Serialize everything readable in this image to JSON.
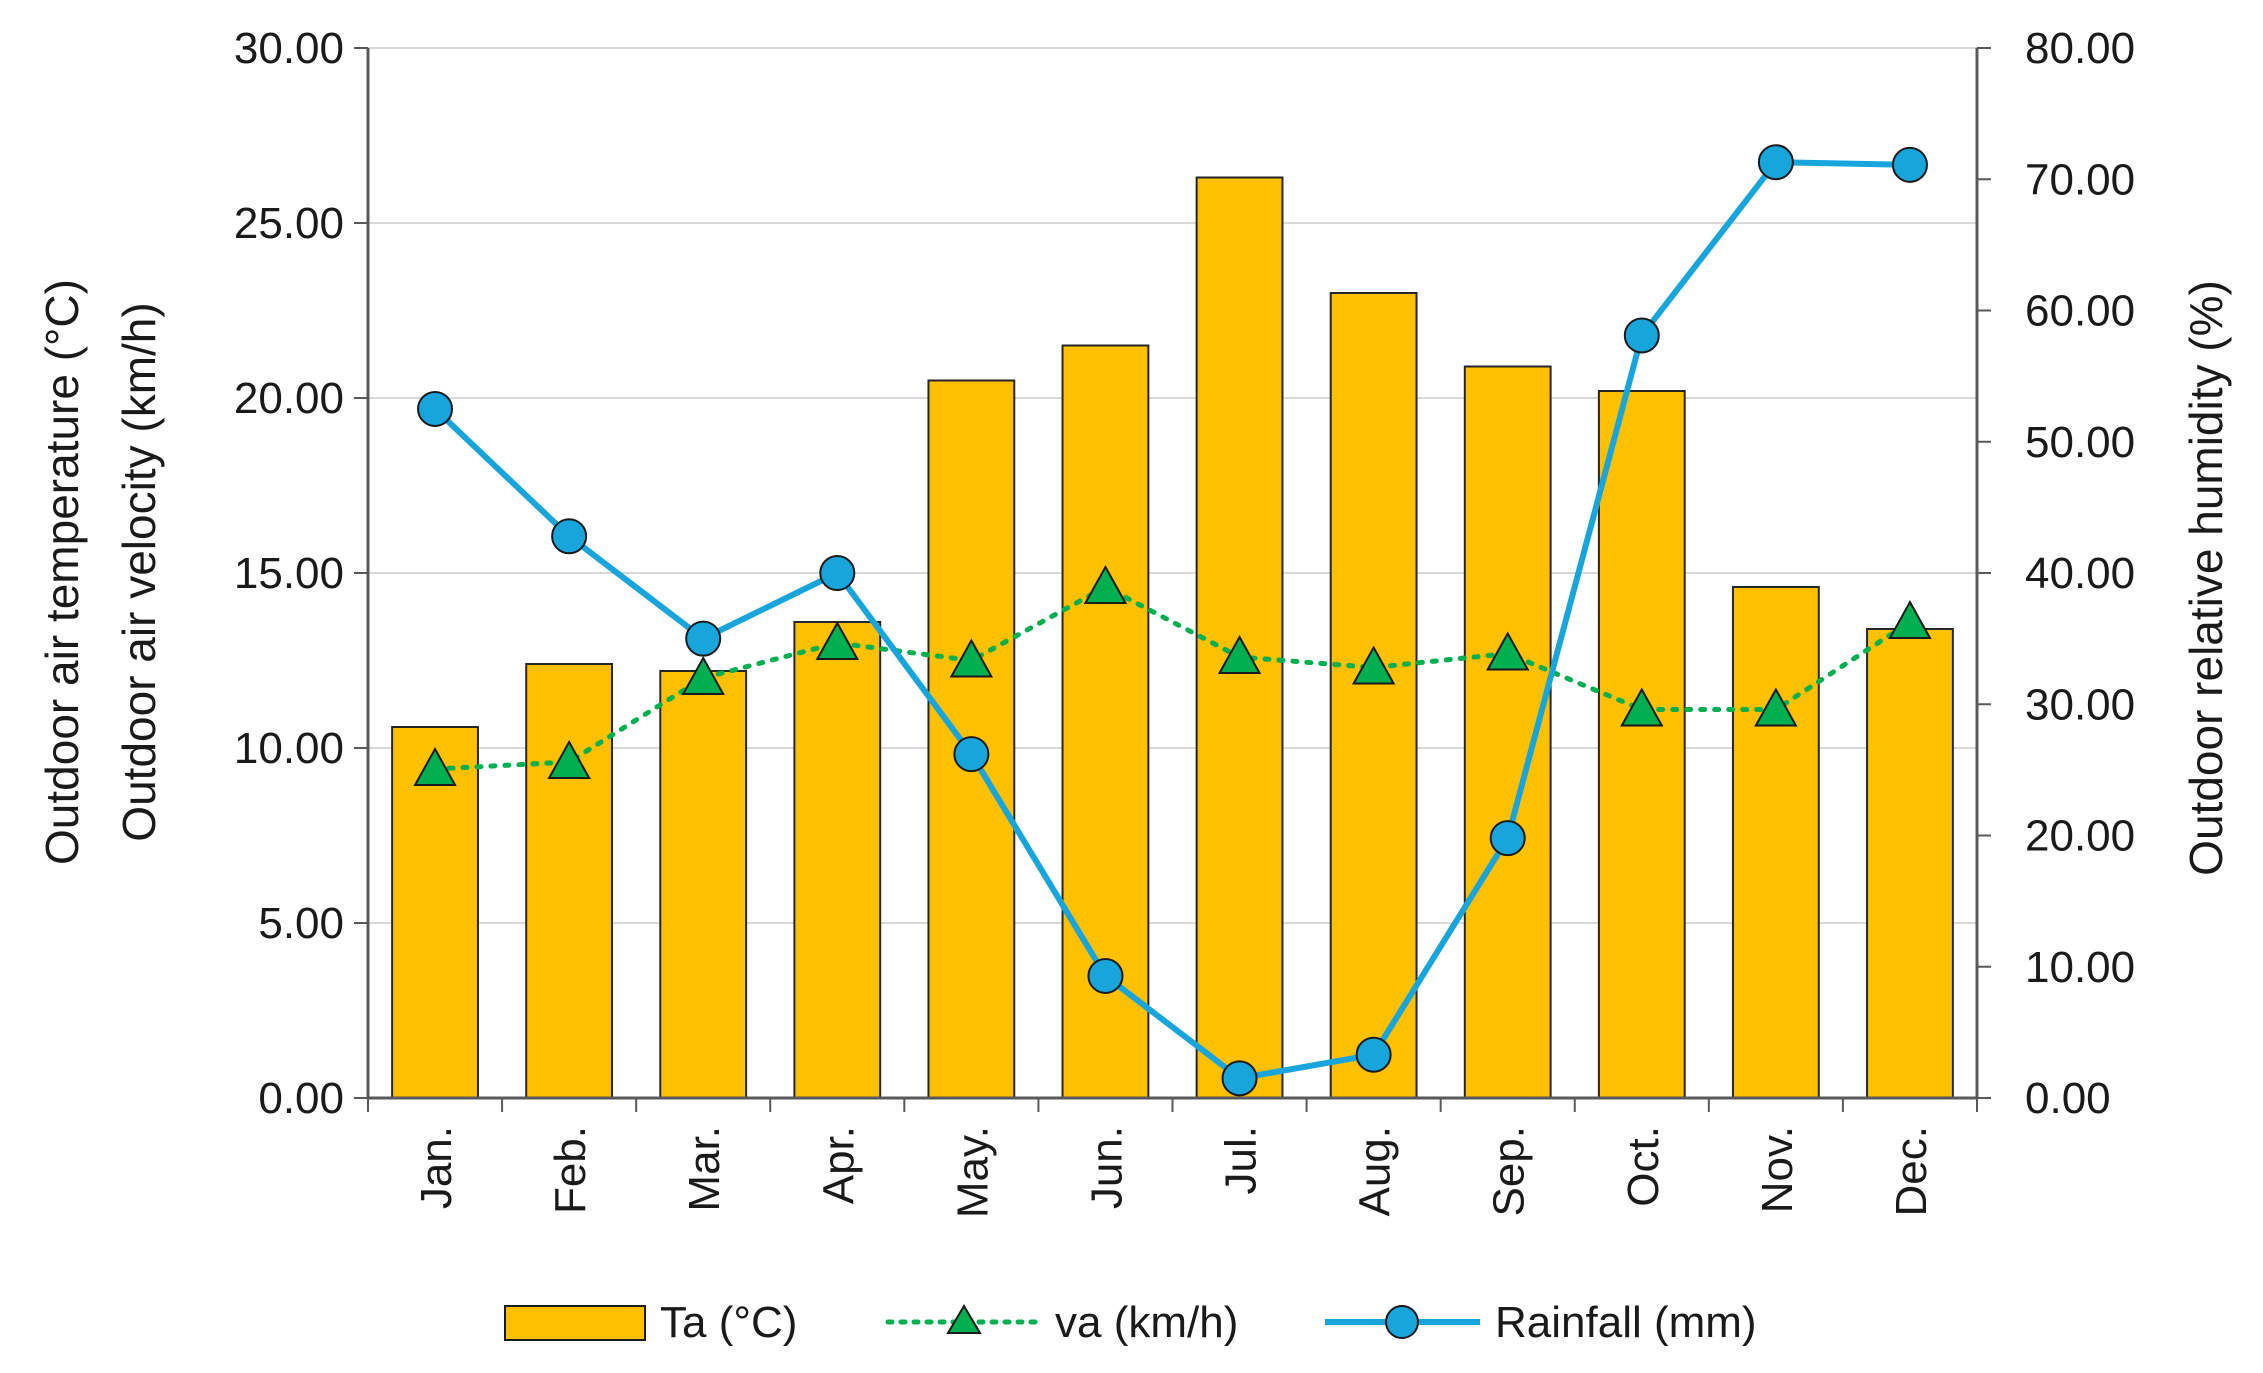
{
  "chart_data": {
    "type": "bar",
    "categories": [
      "Jan.",
      "Feb.",
      "Mar.",
      "Apr.",
      "May.",
      "Jun.",
      "Jul.",
      "Aug.",
      "Sep.",
      "Oct.",
      "Nov.",
      "Dec."
    ],
    "left_axis": {
      "title_lines": [
        "Outdoor air temperature (°C)",
        "Outdoor air velocity (km/h)"
      ],
      "range": [
        0,
        30
      ],
      "ticks": [
        "0.00",
        "5.00",
        "10.00",
        "15.00",
        "20.00",
        "25.00",
        "30.00"
      ]
    },
    "right_axis": {
      "title": "Outdoor relative humidity (%)",
      "range": [
        0,
        80
      ],
      "ticks": [
        "0.00",
        "10.00",
        "20.00",
        "30.00",
        "40.00",
        "50.00",
        "60.00",
        "70.00",
        "80.00"
      ]
    },
    "series": [
      {
        "name": "Ta (°C)",
        "kind": "bar",
        "axis": "left",
        "color": "#FFC000",
        "values": [
          10.6,
          12.4,
          12.2,
          13.6,
          20.5,
          21.5,
          26.3,
          23.0,
          20.9,
          20.2,
          14.6,
          13.4
        ]
      },
      {
        "name": "va (km/h)",
        "kind": "line-dotted-triangle",
        "axis": "left",
        "color": "#00B050",
        "values": [
          9.4,
          9.6,
          12.0,
          13.0,
          12.5,
          14.6,
          12.6,
          12.3,
          12.7,
          11.1,
          11.1,
          13.6
        ]
      },
      {
        "name": "Rainfall (mm)",
        "kind": "line-circle",
        "axis": "right",
        "color": "#17A5DC",
        "values": [
          52.5,
          42.8,
          35.0,
          40.0,
          26.2,
          9.3,
          1.5,
          3.3,
          19.8,
          58.1,
          71.3,
          71.1
        ]
      }
    ],
    "grid": "horizontal",
    "legend_position": "bottom"
  }
}
